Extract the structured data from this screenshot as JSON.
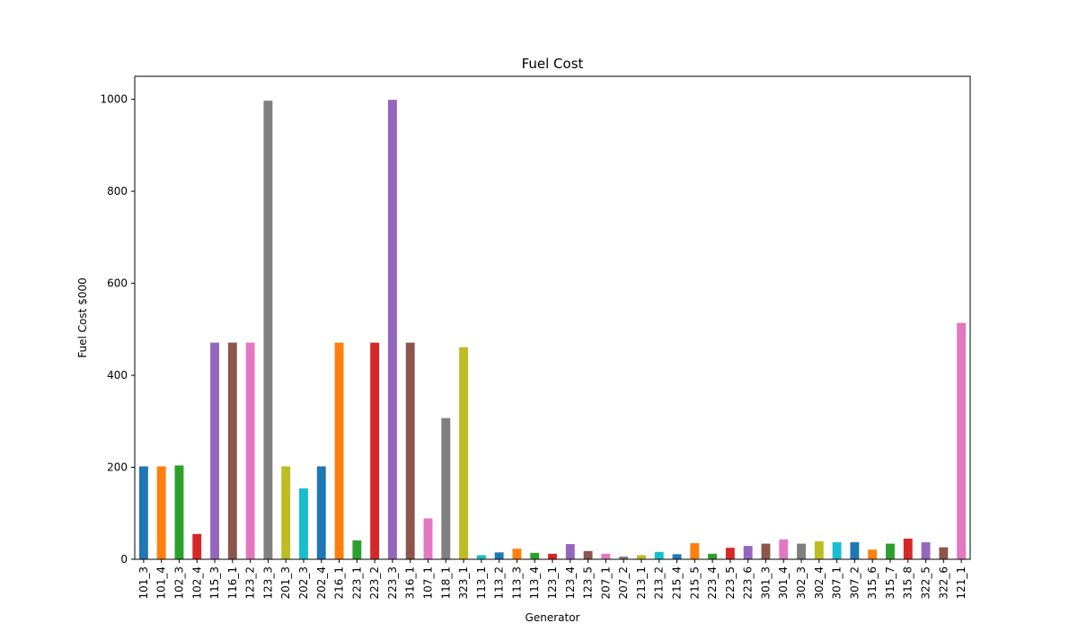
{
  "chart_data": {
    "type": "bar",
    "title": "Fuel Cost",
    "xlabel": "Generator",
    "ylabel": "Fuel Cost $000",
    "ylim": [
      0,
      1050
    ],
    "yticks": [
      0,
      200,
      400,
      600,
      800,
      1000
    ],
    "grid": false,
    "legend": "none",
    "categories": [
      "101_3",
      "101_4",
      "102_3",
      "102_4",
      "115_3",
      "116_1",
      "123_2",
      "123_3",
      "201_3",
      "202_3",
      "202_4",
      "216_1",
      "223_1",
      "223_2",
      "223_3",
      "316_1",
      "107_1",
      "118_1",
      "323_1",
      "113_1",
      "113_2",
      "113_3",
      "113_4",
      "123_1",
      "123_4",
      "123_5",
      "207_1",
      "207_2",
      "213_1",
      "213_2",
      "215_4",
      "215_5",
      "223_4",
      "223_5",
      "223_6",
      "301_3",
      "301_4",
      "302_3",
      "302_4",
      "307_1",
      "307_2",
      "315_6",
      "315_7",
      "315_8",
      "322_5",
      "322_6",
      "121_1"
    ],
    "values": [
      202,
      202,
      204,
      55,
      471,
      471,
      471,
      997,
      202,
      154,
      202,
      471,
      41,
      471,
      999,
      471,
      89,
      307,
      461,
      9,
      15,
      23,
      14,
      12,
      33,
      18,
      12,
      6,
      9,
      16,
      11,
      35,
      12,
      25,
      29,
      34,
      43,
      34,
      39,
      37,
      37,
      21,
      34,
      45,
      37,
      26,
      514
    ],
    "colors": [
      "#1f77b4",
      "#ff7f0e",
      "#2ca02c",
      "#d62728",
      "#9467bd",
      "#8c564b",
      "#e377c2",
      "#7f7f7f",
      "#bcbd22",
      "#17becf"
    ]
  }
}
